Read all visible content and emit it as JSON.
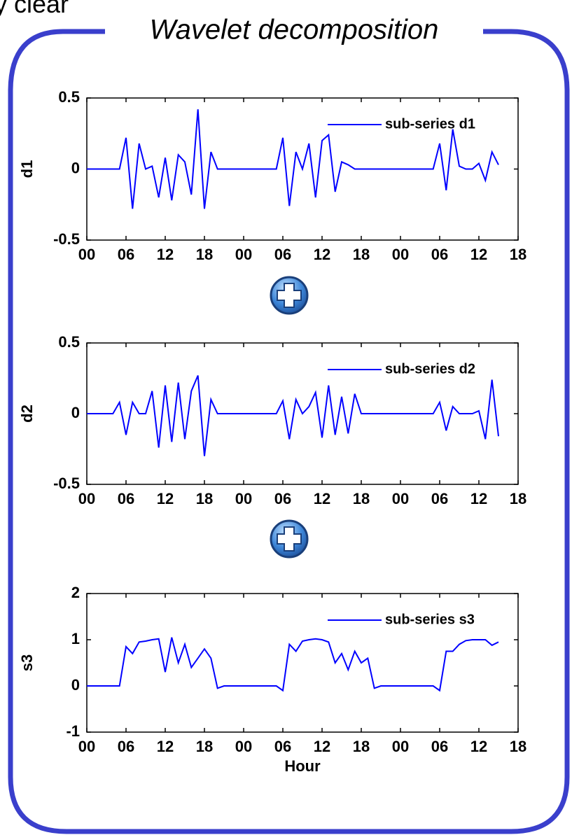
{
  "fragment": "y clear",
  "title": "Wavelet decomposition",
  "chart_data": [
    {
      "type": "line",
      "ylabel": "d1",
      "legend": "upper right",
      "x": [
        0,
        1,
        2,
        3,
        4,
        5,
        6,
        7,
        8,
        9,
        10,
        11,
        12,
        13,
        14,
        15,
        16,
        17,
        18,
        19,
        20,
        21,
        22,
        23,
        24,
        25,
        26,
        27,
        28,
        29,
        30,
        31,
        32,
        33,
        34,
        35,
        36,
        37,
        38,
        39,
        40,
        41,
        42,
        43,
        44,
        45,
        46,
        47,
        48,
        49,
        50,
        51,
        52,
        53,
        54,
        55,
        56,
        57,
        58,
        59,
        60,
        61,
        62,
        63
      ],
      "series": [
        {
          "name": "sub-series d1",
          "color": "#0000ff",
          "values": [
            0,
            0,
            0,
            0,
            0,
            0,
            0.22,
            -0.28,
            0.18,
            0,
            0.02,
            -0.2,
            0.08,
            -0.22,
            0.1,
            0.05,
            -0.18,
            0.42,
            -0.28,
            0.12,
            0,
            0,
            0,
            0,
            0,
            0,
            0,
            0,
            0,
            0,
            0.22,
            -0.26,
            0.12,
            0,
            0.18,
            -0.2,
            0.2,
            0.24,
            -0.16,
            0.05,
            0.03,
            0,
            0,
            0,
            0,
            0,
            0,
            0,
            0,
            0,
            0,
            0,
            0,
            0,
            0.18,
            -0.15,
            0.28,
            0.02,
            0,
            0,
            0.04,
            -0.08,
            0.12,
            0.03
          ]
        }
      ],
      "xlim": [
        0,
        66
      ],
      "xticks": [
        {
          "value": 0,
          "label": "00"
        },
        {
          "value": 6,
          "label": "06"
        },
        12,
        18,
        {
          "value": 24,
          "label": "00"
        },
        {
          "value": 30,
          "label": "06"
        },
        {
          "value": 36,
          "label": "12"
        },
        {
          "value": 42,
          "label": "18"
        },
        {
          "value": 48,
          "label": "00"
        },
        {
          "value": 54,
          "label": "06"
        },
        {
          "value": 60,
          "label": "12"
        },
        {
          "value": 66,
          "label": "18"
        }
      ],
      "ylim": [
        -0.5,
        0.5
      ],
      "yticks": [
        -0.5,
        0,
        0.5
      ]
    },
    {
      "type": "line",
      "ylabel": "d2",
      "legend": "upper right",
      "x": [
        0,
        1,
        2,
        3,
        4,
        5,
        6,
        7,
        8,
        9,
        10,
        11,
        12,
        13,
        14,
        15,
        16,
        17,
        18,
        19,
        20,
        21,
        22,
        23,
        24,
        25,
        26,
        27,
        28,
        29,
        30,
        31,
        32,
        33,
        34,
        35,
        36,
        37,
        38,
        39,
        40,
        41,
        42,
        43,
        44,
        45,
        46,
        47,
        48,
        49,
        50,
        51,
        52,
        53,
        54,
        55,
        56,
        57,
        58,
        59,
        60,
        61,
        62,
        63
      ],
      "series": [
        {
          "name": "sub-series d2",
          "color": "#0000ff",
          "values": [
            0,
            0,
            0,
            0,
            0,
            0.08,
            -0.15,
            0.08,
            0,
            0,
            0.16,
            -0.24,
            0.2,
            -0.2,
            0.22,
            -0.18,
            0.16,
            0.27,
            -0.3,
            0.1,
            0,
            0,
            0,
            0,
            0,
            0,
            0,
            0,
            0,
            0,
            0.09,
            -0.18,
            0.1,
            0,
            0.05,
            0.15,
            -0.17,
            0.2,
            -0.15,
            0.12,
            -0.14,
            0.14,
            0,
            0,
            0,
            0,
            0,
            0,
            0,
            0,
            0,
            0,
            0,
            0,
            0.08,
            -0.12,
            0.05,
            0,
            0,
            0,
            0.02,
            -0.18,
            0.24,
            -0.16
          ]
        }
      ],
      "xlim": [
        0,
        66
      ],
      "xticks": [
        {
          "value": 0,
          "label": "00"
        },
        {
          "value": 6,
          "label": "06"
        },
        12,
        18,
        {
          "value": 24,
          "label": "00"
        },
        {
          "value": 30,
          "label": "06"
        },
        {
          "value": 36,
          "label": "12"
        },
        {
          "value": 42,
          "label": "18"
        },
        {
          "value": 48,
          "label": "00"
        },
        {
          "value": 54,
          "label": "06"
        },
        {
          "value": 60,
          "label": "12"
        },
        {
          "value": 66,
          "label": "18"
        }
      ],
      "ylim": [
        -0.5,
        0.5
      ],
      "yticks": [
        -0.5,
        0,
        0.5
      ]
    },
    {
      "type": "line",
      "ylabel": "s3",
      "xlabel": "Hour",
      "legend": "upper right",
      "x": [
        0,
        1,
        2,
        3,
        4,
        5,
        6,
        7,
        8,
        9,
        10,
        11,
        12,
        13,
        14,
        15,
        16,
        17,
        18,
        19,
        20,
        21,
        22,
        23,
        24,
        25,
        26,
        27,
        28,
        29,
        30,
        31,
        32,
        33,
        34,
        35,
        36,
        37,
        38,
        39,
        40,
        41,
        42,
        43,
        44,
        45,
        46,
        47,
        48,
        49,
        50,
        51,
        52,
        53,
        54,
        55,
        56,
        57,
        58,
        59,
        60,
        61,
        62,
        63
      ],
      "series": [
        {
          "name": "sub-series s3",
          "color": "#0000ff",
          "values": [
            0,
            0,
            0,
            0,
            0,
            0,
            0.85,
            0.7,
            0.95,
            0.97,
            1.0,
            1.02,
            0.3,
            1.05,
            0.5,
            0.9,
            0.4,
            0.6,
            0.8,
            0.6,
            -0.05,
            0,
            0,
            0,
            0,
            0,
            0,
            0,
            0,
            0,
            -0.1,
            0.9,
            0.75,
            0.97,
            1.0,
            1.02,
            1.0,
            0.95,
            0.5,
            0.7,
            0.35,
            0.75,
            0.5,
            0.6,
            -0.05,
            0,
            0,
            0,
            0,
            0,
            0,
            0,
            0,
            0,
            -0.1,
            0.75,
            0.75,
            0.9,
            0.98,
            1.0,
            1.0,
            1.0,
            0.88,
            0.95
          ]
        }
      ],
      "xlim": [
        0,
        66
      ],
      "xticks": [
        {
          "value": 0,
          "label": "00"
        },
        {
          "value": 6,
          "label": "06"
        },
        12,
        18,
        {
          "value": 24,
          "label": "00"
        },
        {
          "value": 30,
          "label": "06"
        },
        {
          "value": 36,
          "label": "12"
        },
        {
          "value": 42,
          "label": "18"
        },
        {
          "value": 48,
          "label": "00"
        },
        {
          "value": 54,
          "label": "06"
        },
        {
          "value": 60,
          "label": "12"
        },
        {
          "value": 66,
          "label": "18"
        }
      ],
      "ylim": [
        -1,
        2
      ],
      "yticks": [
        -1,
        0,
        1,
        2
      ]
    }
  ]
}
